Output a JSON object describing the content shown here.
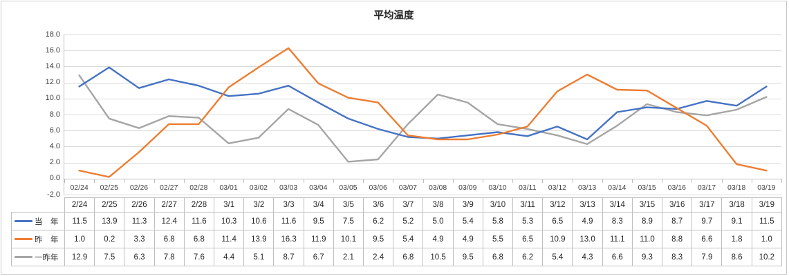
{
  "chart_data": {
    "type": "line",
    "title": "平均温度",
    "x_axis_labels": [
      "02/24",
      "02/25",
      "02/26",
      "02/27",
      "02/28",
      "03/01",
      "03/02",
      "03/03",
      "03/04",
      "03/05",
      "03/06",
      "03/07",
      "03/08",
      "03/09",
      "03/10",
      "03/11",
      "03/12",
      "03/13",
      "03/14",
      "03/15",
      "03/16",
      "03/17",
      "03/18",
      "03/19"
    ],
    "series": [
      {
        "key": "this-year",
        "name": "当　年",
        "color": "#4472C4",
        "values": [
          11.5,
          13.9,
          11.3,
          12.4,
          11.6,
          10.3,
          10.6,
          11.6,
          9.5,
          7.5,
          6.2,
          5.2,
          5.0,
          5.4,
          5.8,
          5.3,
          6.5,
          4.9,
          8.3,
          8.9,
          8.7,
          9.7,
          9.1,
          11.5
        ]
      },
      {
        "key": "last-year",
        "name": "昨　年",
        "color": "#ED7D31",
        "values": [
          1.0,
          0.2,
          3.3,
          6.8,
          6.8,
          11.4,
          13.9,
          16.3,
          11.9,
          10.1,
          9.5,
          5.4,
          4.9,
          4.9,
          5.5,
          6.5,
          10.9,
          13.0,
          11.1,
          11.0,
          8.8,
          6.6,
          1.8,
          1.0
        ]
      },
      {
        "key": "year-before-last",
        "name": "一昨年",
        "color": "#A5A5A5",
        "values": [
          12.9,
          7.5,
          6.3,
          7.8,
          7.6,
          4.4,
          5.1,
          8.7,
          6.7,
          2.1,
          2.4,
          6.8,
          10.5,
          9.5,
          6.8,
          6.2,
          5.4,
          4.3,
          6.6,
          9.3,
          8.3,
          7.9,
          8.6,
          10.2
        ]
      }
    ],
    "ylim": [
      -2.0,
      18.0
    ],
    "y_tick_step": 2.0,
    "category_axis_cross": 0.0,
    "grid": true,
    "legend_position": "data-table-left-column"
  },
  "data_table": {
    "column_headers": [
      "2/24",
      "2/25",
      "2/26",
      "2/27",
      "2/28",
      "3/1",
      "3/2",
      "3/3",
      "3/4",
      "3/5",
      "3/6",
      "3/7",
      "3/8",
      "3/9",
      "3/10",
      "3/11",
      "3/12",
      "3/13",
      "3/14",
      "3/15",
      "3/16",
      "3/17",
      "3/18",
      "3/19"
    ]
  }
}
